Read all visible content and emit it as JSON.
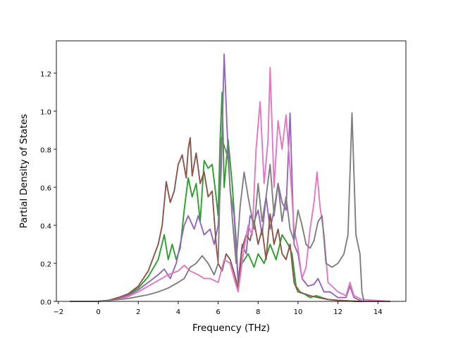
{
  "chart_data": {
    "type": "line",
    "title": "",
    "xlabel": "Frequency (THz)",
    "ylabel": "Partial Density of States",
    "xlim": [
      -2.1,
      15.4
    ],
    "ylim": [
      0.0,
      1.37
    ],
    "x_ticks": [
      -2,
      0,
      2,
      4,
      6,
      8,
      10,
      12,
      14
    ],
    "x_tick_labels": [
      "−2",
      "0",
      "2",
      "4",
      "6",
      "8",
      "10",
      "12",
      "14"
    ],
    "y_ticks": [
      0.0,
      0.2,
      0.4,
      0.6,
      0.8,
      1.0,
      1.2
    ],
    "y_tick_labels": [
      "0.0",
      "0.2",
      "0.4",
      "0.6",
      "0.8",
      "1.0",
      "1.2"
    ],
    "grid": false,
    "legend": "none",
    "series": [
      {
        "color": "#2ca02c",
        "points": [
          [
            -1.4,
            0
          ],
          [
            0,
            0
          ],
          [
            0.5,
            0.005
          ],
          [
            1,
            0.015
          ],
          [
            1.5,
            0.035
          ],
          [
            2,
            0.07
          ],
          [
            2.5,
            0.13
          ],
          [
            3,
            0.22
          ],
          [
            3.3,
            0.35
          ],
          [
            3.5,
            0.22
          ],
          [
            3.7,
            0.3
          ],
          [
            3.9,
            0.22
          ],
          [
            4.1,
            0.28
          ],
          [
            4.3,
            0.48
          ],
          [
            4.5,
            0.65
          ],
          [
            4.7,
            0.55
          ],
          [
            4.9,
            0.62
          ],
          [
            5.1,
            0.42
          ],
          [
            5.3,
            0.74
          ],
          [
            5.5,
            0.7
          ],
          [
            5.7,
            0.72
          ],
          [
            5.9,
            0.55
          ],
          [
            6.0,
            0.45
          ],
          [
            6.1,
            0.85
          ],
          [
            6.2,
            1.1
          ],
          [
            6.3,
            0.6
          ],
          [
            6.5,
            0.85
          ],
          [
            6.7,
            0.62
          ],
          [
            6.9,
            0.32
          ],
          [
            7.0,
            0.1
          ],
          [
            7.2,
            0.2
          ],
          [
            7.5,
            0.25
          ],
          [
            7.8,
            0.18
          ],
          [
            8.0,
            0.25
          ],
          [
            8.3,
            0.2
          ],
          [
            8.6,
            0.3
          ],
          [
            8.9,
            0.22
          ],
          [
            9.2,
            0.35
          ],
          [
            9.5,
            0.3
          ],
          [
            9.7,
            0.25
          ],
          [
            9.9,
            0.08
          ],
          [
            10.1,
            0.05
          ],
          [
            10.3,
            0.04
          ],
          [
            10.6,
            0.02
          ],
          [
            10.9,
            0.03
          ],
          [
            11.2,
            0.02
          ],
          [
            11.5,
            0.01
          ],
          [
            12,
            0.005
          ],
          [
            13,
            0
          ],
          [
            14.6,
            0
          ]
        ]
      },
      {
        "color": "#9467bd",
        "points": [
          [
            -1.4,
            0
          ],
          [
            0,
            0
          ],
          [
            0.5,
            0.005
          ],
          [
            1,
            0.015
          ],
          [
            1.5,
            0.03
          ],
          [
            2,
            0.06
          ],
          [
            2.5,
            0.1
          ],
          [
            3,
            0.14
          ],
          [
            3.3,
            0.17
          ],
          [
            3.6,
            0.12
          ],
          [
            3.9,
            0.2
          ],
          [
            4.1,
            0.3
          ],
          [
            4.3,
            0.4
          ],
          [
            4.5,
            0.45
          ],
          [
            4.8,
            0.38
          ],
          [
            5.0,
            0.45
          ],
          [
            5.3,
            0.35
          ],
          [
            5.6,
            0.38
          ],
          [
            5.8,
            0.3
          ],
          [
            6.0,
            0.4
          ],
          [
            6.15,
            0.68
          ],
          [
            6.3,
            1.3
          ],
          [
            6.45,
            0.9
          ],
          [
            6.6,
            0.58
          ],
          [
            6.8,
            0.45
          ],
          [
            7.0,
            0.1
          ],
          [
            7.2,
            0.3
          ],
          [
            7.4,
            0.25
          ],
          [
            7.6,
            0.45
          ],
          [
            7.8,
            0.42
          ],
          [
            8.0,
            0.48
          ],
          [
            8.2,
            0.35
          ],
          [
            8.4,
            0.55
          ],
          [
            8.6,
            0.38
          ],
          [
            8.8,
            0.48
          ],
          [
            9.0,
            0.62
          ],
          [
            9.2,
            0.52
          ],
          [
            9.4,
            0.48
          ],
          [
            9.6,
            0.99
          ],
          [
            9.8,
            0.3
          ],
          [
            10.0,
            0.25
          ],
          [
            10.2,
            0.12
          ],
          [
            10.5,
            0.08
          ],
          [
            10.8,
            0.09
          ],
          [
            11.0,
            0.12
          ],
          [
            11.3,
            0.05
          ],
          [
            11.6,
            0.05
          ],
          [
            12,
            0.02
          ],
          [
            12.4,
            0.02
          ],
          [
            12.6,
            0.08
          ],
          [
            12.8,
            0.02
          ],
          [
            13.2,
            0
          ],
          [
            14.6,
            0
          ]
        ]
      },
      {
        "color": "#8c564b",
        "points": [
          [
            -1.4,
            0
          ],
          [
            0,
            0
          ],
          [
            0.5,
            0.005
          ],
          [
            1,
            0.02
          ],
          [
            1.5,
            0.04
          ],
          [
            2,
            0.08
          ],
          [
            2.5,
            0.16
          ],
          [
            3,
            0.3
          ],
          [
            3.2,
            0.4
          ],
          [
            3.4,
            0.63
          ],
          [
            3.6,
            0.52
          ],
          [
            3.8,
            0.58
          ],
          [
            4.0,
            0.72
          ],
          [
            4.2,
            0.77
          ],
          [
            4.4,
            0.65
          ],
          [
            4.5,
            0.8
          ],
          [
            4.6,
            0.86
          ],
          [
            4.7,
            0.66
          ],
          [
            4.9,
            0.78
          ],
          [
            5.1,
            0.62
          ],
          [
            5.3,
            0.68
          ],
          [
            5.5,
            0.55
          ],
          [
            5.7,
            0.58
          ],
          [
            5.9,
            0.3
          ],
          [
            6.0,
            0.2
          ],
          [
            6.2,
            0.16
          ],
          [
            6.4,
            0.25
          ],
          [
            6.6,
            0.22
          ],
          [
            6.8,
            0.15
          ],
          [
            7.0,
            0.07
          ],
          [
            7.2,
            0.28
          ],
          [
            7.4,
            0.35
          ],
          [
            7.6,
            0.32
          ],
          [
            7.8,
            0.42
          ],
          [
            8.0,
            0.3
          ],
          [
            8.2,
            0.38
          ],
          [
            8.4,
            0.22
          ],
          [
            8.6,
            0.46
          ],
          [
            8.8,
            0.3
          ],
          [
            9.0,
            0.38
          ],
          [
            9.2,
            0.25
          ],
          [
            9.4,
            0.22
          ],
          [
            9.6,
            0.3
          ],
          [
            9.8,
            0.1
          ],
          [
            10.0,
            0.05
          ],
          [
            10.3,
            0.04
          ],
          [
            10.6,
            0.03
          ],
          [
            11,
            0.02
          ],
          [
            11.5,
            0.01
          ],
          [
            12,
            0.005
          ],
          [
            13,
            0
          ],
          [
            14.6,
            0
          ]
        ]
      },
      {
        "color": "#e377c2",
        "points": [
          [
            -1.4,
            0
          ],
          [
            0,
            0
          ],
          [
            0.5,
            0.005
          ],
          [
            1,
            0.01
          ],
          [
            1.5,
            0.025
          ],
          [
            2,
            0.05
          ],
          [
            2.5,
            0.08
          ],
          [
            3,
            0.11
          ],
          [
            3.5,
            0.14
          ],
          [
            4,
            0.16
          ],
          [
            4.3,
            0.19
          ],
          [
            4.6,
            0.16
          ],
          [
            5,
            0.14
          ],
          [
            5.3,
            0.12
          ],
          [
            5.6,
            0.12
          ],
          [
            6.0,
            0.1
          ],
          [
            6.3,
            0.22
          ],
          [
            6.6,
            0.2
          ],
          [
            6.8,
            0.12
          ],
          [
            7.0,
            0.05
          ],
          [
            7.3,
            0.28
          ],
          [
            7.5,
            0.4
          ],
          [
            7.7,
            0.35
          ],
          [
            7.9,
            0.8
          ],
          [
            8.1,
            1.05
          ],
          [
            8.3,
            0.62
          ],
          [
            8.5,
            0.85
          ],
          [
            8.6,
            1.23
          ],
          [
            8.8,
            0.6
          ],
          [
            9.0,
            0.95
          ],
          [
            9.2,
            0.8
          ],
          [
            9.4,
            0.98
          ],
          [
            9.6,
            0.7
          ],
          [
            9.8,
            0.38
          ],
          [
            10.0,
            0.28
          ],
          [
            10.2,
            0.12
          ],
          [
            10.4,
            0.18
          ],
          [
            10.6,
            0.38
          ],
          [
            10.8,
            0.52
          ],
          [
            10.95,
            0.68
          ],
          [
            11.1,
            0.5
          ],
          [
            11.3,
            0.35
          ],
          [
            11.5,
            0.1
          ],
          [
            12,
            0.05
          ],
          [
            12.4,
            0.03
          ],
          [
            12.6,
            0.1
          ],
          [
            12.8,
            0.03
          ],
          [
            13.2,
            0.01
          ],
          [
            14.6,
            0
          ]
        ]
      },
      {
        "color": "#7f7f7f",
        "points": [
          [
            -1.4,
            0
          ],
          [
            0,
            0
          ],
          [
            0.5,
            0.005
          ],
          [
            1,
            0.01
          ],
          [
            1.5,
            0.015
          ],
          [
            2,
            0.025
          ],
          [
            2.5,
            0.035
          ],
          [
            3,
            0.05
          ],
          [
            3.5,
            0.07
          ],
          [
            4,
            0.1
          ],
          [
            4.3,
            0.12
          ],
          [
            4.6,
            0.18
          ],
          [
            4.9,
            0.2
          ],
          [
            5.2,
            0.24
          ],
          [
            5.5,
            0.2
          ],
          [
            5.8,
            0.14
          ],
          [
            6.0,
            0.2
          ],
          [
            6.15,
            0.86
          ],
          [
            6.3,
            0.82
          ],
          [
            6.5,
            0.75
          ],
          [
            6.7,
            0.45
          ],
          [
            6.9,
            0.2
          ],
          [
            7.1,
            0.5
          ],
          [
            7.3,
            0.68
          ],
          [
            7.5,
            0.55
          ],
          [
            7.8,
            0.38
          ],
          [
            8.0,
            0.62
          ],
          [
            8.2,
            0.42
          ],
          [
            8.4,
            0.55
          ],
          [
            8.6,
            0.72
          ],
          [
            8.8,
            0.45
          ],
          [
            9.0,
            0.62
          ],
          [
            9.2,
            0.42
          ],
          [
            9.4,
            0.55
          ],
          [
            9.6,
            0.38
          ],
          [
            9.8,
            0.32
          ],
          [
            10.0,
            0.48
          ],
          [
            10.2,
            0.4
          ],
          [
            10.4,
            0.3
          ],
          [
            10.6,
            0.28
          ],
          [
            10.8,
            0.32
          ],
          [
            11.0,
            0.42
          ],
          [
            11.2,
            0.45
          ],
          [
            11.4,
            0.2
          ],
          [
            11.7,
            0.18
          ],
          [
            12,
            0.2
          ],
          [
            12.3,
            0.25
          ],
          [
            12.5,
            0.35
          ],
          [
            12.7,
            0.99
          ],
          [
            12.9,
            0.35
          ],
          [
            13.1,
            0.25
          ],
          [
            13.2,
            0.05
          ],
          [
            13.3,
            0
          ],
          [
            14.6,
            0
          ]
        ]
      }
    ]
  }
}
